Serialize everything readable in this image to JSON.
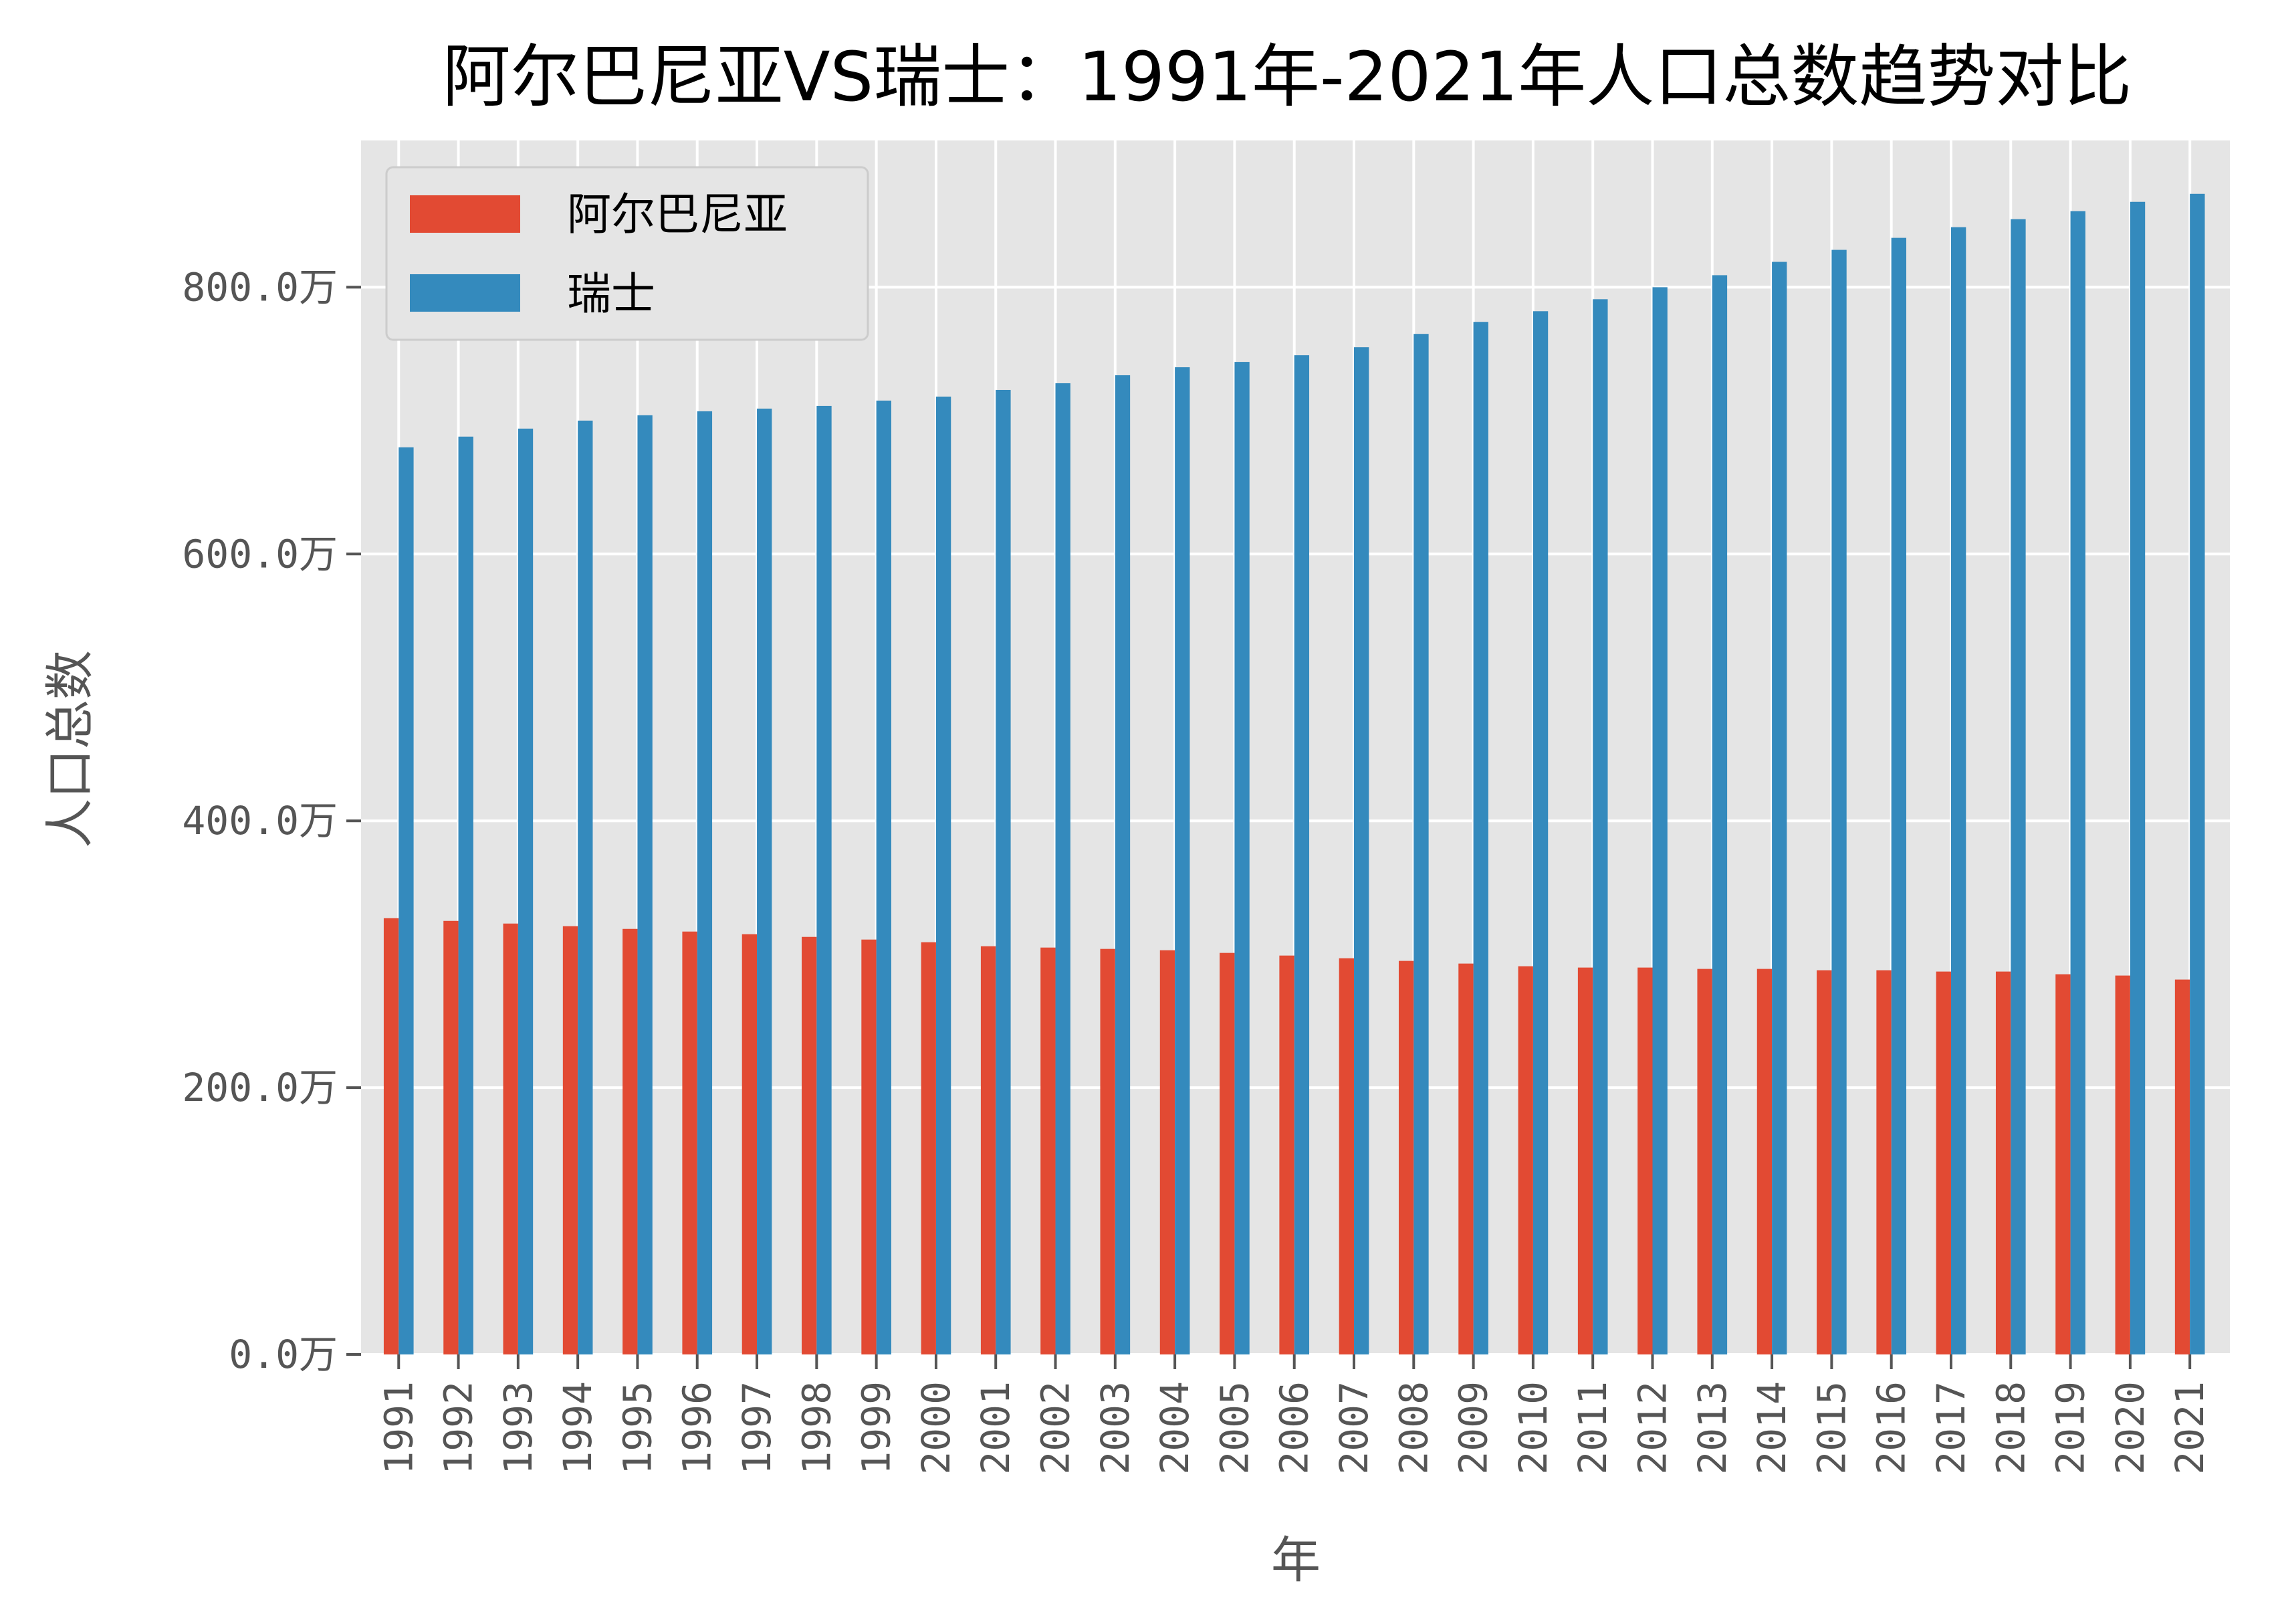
{
  "colors": {
    "albania": "#e24a33",
    "switzerland": "#348abd",
    "plot_background": "#e5e5e5",
    "grid": "#ffffff",
    "tick_text": "#555555"
  },
  "chart_data": {
    "type": "bar",
    "title": "阿尔巴尼亚VS瑞士：1991年-2021年人口总数趋势对比",
    "xlabel": "年",
    "ylabel": "人口总数",
    "grid": true,
    "legend_position": "top-left",
    "ylim": [
      0,
      910
    ],
    "y_unit_suffix": "万",
    "y_ticks": [
      0,
      200,
      400,
      600,
      800
    ],
    "y_tick_labels": [
      "0.0万",
      "200.0万",
      "400.0万",
      "600.0万",
      "800.0万"
    ],
    "categories": [
      "1991",
      "1992",
      "1993",
      "1994",
      "1995",
      "1996",
      "1997",
      "1998",
      "1999",
      "2000",
      "2001",
      "2002",
      "2003",
      "2004",
      "2005",
      "2006",
      "2007",
      "2008",
      "2009",
      "2010",
      "2011",
      "2012",
      "2013",
      "2014",
      "2015",
      "2016",
      "2017",
      "2018",
      "2019",
      "2020",
      "2021"
    ],
    "series": [
      {
        "name": "阿尔巴尼亚",
        "color": "#e24a33",
        "values": [
          327,
          325,
          323,
          321,
          319,
          317,
          315,
          313,
          311,
          309,
          306,
          305,
          304,
          303,
          301,
          299,
          297,
          295,
          293,
          291,
          290,
          290,
          289,
          289,
          288,
          288,
          287,
          287,
          285,
          284,
          281
        ]
      },
      {
        "name": "瑞士",
        "color": "#348abd",
        "values": [
          680,
          688,
          694,
          700,
          704,
          707,
          709,
          711,
          715,
          718,
          723,
          728,
          734,
          740,
          744,
          749,
          755,
          765,
          774,
          782,
          791,
          800,
          809,
          819,
          828,
          837,
          845,
          851,
          857,
          864,
          870
        ]
      }
    ]
  }
}
